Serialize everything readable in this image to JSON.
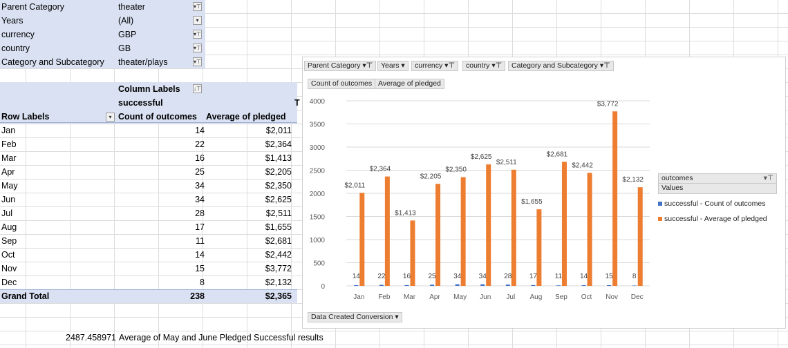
{
  "filters": [
    {
      "label": "Parent Category",
      "value": "theater"
    },
    {
      "label": "Years",
      "value": "(All)"
    },
    {
      "label": "currency",
      "value": "GBP"
    },
    {
      "label": "country",
      "value": "GB"
    },
    {
      "label": "Category and Subcategory",
      "value": "theater/plays"
    }
  ],
  "pivot": {
    "column_labels": "Column Labels",
    "successful": "successful",
    "row_labels": "Row Labels",
    "col_count": "Count of outcomes",
    "col_avg": "Average of pledged",
    "cut_letter": "T",
    "rows": [
      {
        "month": "Jan",
        "count": "14",
        "avg": "$2,011"
      },
      {
        "month": "Feb",
        "count": "22",
        "avg": "$2,364"
      },
      {
        "month": "Mar",
        "count": "16",
        "avg": "$1,413"
      },
      {
        "month": "Apr",
        "count": "25",
        "avg": "$2,205"
      },
      {
        "month": "May",
        "count": "34",
        "avg": "$2,350"
      },
      {
        "month": "Jun",
        "count": "34",
        "avg": "$2,625"
      },
      {
        "month": "Jul",
        "count": "28",
        "avg": "$2,511"
      },
      {
        "month": "Aug",
        "count": "17",
        "avg": "$1,655"
      },
      {
        "month": "Sep",
        "count": "11",
        "avg": "$2,681"
      },
      {
        "month": "Oct",
        "count": "14",
        "avg": "$2,442"
      },
      {
        "month": "Nov",
        "count": "15",
        "avg": "$3,772"
      },
      {
        "month": "Dec",
        "count": "8",
        "avg": "$2,132"
      }
    ],
    "grand_total": {
      "label": "Grand Total",
      "count": "238",
      "avg": "$2,365"
    }
  },
  "footer": {
    "value": "2487.458971",
    "text": "Average of May and June Pledged Successful results"
  },
  "chart_buttons": {
    "filters": [
      "Parent Category",
      "Years",
      "currency",
      "country",
      "Category and Subcategory"
    ],
    "values": [
      "Count of outcomes",
      "Average of pledged"
    ],
    "axis": "Data Created Conversion"
  },
  "legend": {
    "title": "outcomes",
    "values_label": "Values",
    "items": [
      "successful - Count of outcomes",
      "successful - Average of pledged"
    ]
  },
  "colors": {
    "count": "#4472c4",
    "avg": "#ed7d31",
    "header_fill": "#d9e1f2"
  },
  "chart_data": {
    "type": "bar",
    "categories": [
      "Jan",
      "Feb",
      "Mar",
      "Apr",
      "May",
      "Jun",
      "Jul",
      "Aug",
      "Sep",
      "Oct",
      "Nov",
      "Dec"
    ],
    "series": [
      {
        "name": "successful - Count of outcomes",
        "values": [
          14,
          22,
          16,
          25,
          34,
          34,
          28,
          17,
          11,
          14,
          15,
          8
        ],
        "labels": [
          "14",
          "22",
          "16",
          "25",
          "34",
          "34",
          "28",
          "17",
          "11",
          "14",
          "15",
          "8"
        ]
      },
      {
        "name": "successful - Average of pledged",
        "values": [
          2011,
          2364,
          1413,
          2205,
          2350,
          2625,
          2511,
          1655,
          2681,
          2442,
          3772,
          2132
        ],
        "labels": [
          "$2,011",
          "$2,364",
          "$1,413",
          "$2,205",
          "$2,350",
          "$2,625",
          "$2,511",
          "$1,655",
          "$2,681",
          "$2,442",
          "$3,772",
          "$2,132"
        ]
      }
    ],
    "yticks": [
      "0",
      "500",
      "1000",
      "1500",
      "2000",
      "2500",
      "3000",
      "3500",
      "4000"
    ],
    "ylim": [
      0,
      4000
    ],
    "grid": true,
    "legend_position": "right"
  }
}
